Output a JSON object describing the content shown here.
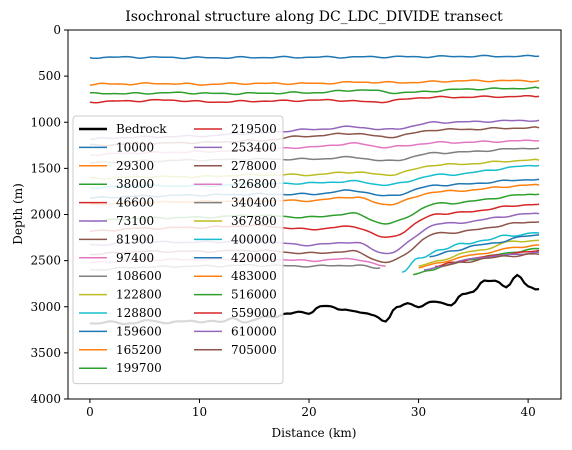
{
  "chart_data": {
    "type": "line",
    "title": "Isochronal structure along DC_LDC_DIVIDE transect",
    "xlabel": "Distance (km)",
    "ylabel": "Depth (m)",
    "xlim": [
      -2,
      43
    ],
    "ylim": [
      4000,
      0
    ],
    "y_inverted": true,
    "xticks": [
      0,
      10,
      20,
      30,
      40
    ],
    "yticks": [
      0,
      500,
      1000,
      1500,
      2000,
      2500,
      3000,
      3500,
      4000
    ],
    "grid": false,
    "legend": {
      "placement": "lower-left",
      "columns": 2
    },
    "bedrock": {
      "name": "Bedrock",
      "color": "#000000",
      "x": [
        0,
        1,
        2,
        3,
        4,
        5,
        6,
        7,
        8,
        9,
        10,
        11,
        12,
        13,
        14,
        15,
        16,
        17,
        18,
        19,
        20,
        21,
        22,
        23,
        24,
        25,
        26,
        27,
        28,
        29,
        30,
        31,
        32,
        33,
        34,
        35,
        36,
        37,
        38,
        39,
        40,
        41
      ],
      "values": [
        3170,
        3180,
        3160,
        3190,
        3170,
        3150,
        3160,
        3180,
        3150,
        3160,
        3170,
        3150,
        3160,
        3130,
        3170,
        3140,
        3100,
        3120,
        3070,
        3050,
        3080,
        3000,
        2990,
        3030,
        3050,
        3070,
        3090,
        3160,
        3010,
        2960,
        3000,
        2950,
        2960,
        2980,
        2860,
        2840,
        2720,
        2710,
        2790,
        2660,
        2780,
        2810
      ]
    },
    "series": [
      {
        "name": "10000",
        "color": "#1f77b4",
        "x": [
          0,
          1.5,
          3,
          10,
          20,
          30,
          35,
          41
        ],
        "values": [
          300,
          295,
          295,
          300,
          295,
          290,
          285,
          285
        ]
      },
      {
        "name": "29300",
        "color": "#ff7f0e",
        "x": [
          0,
          1.5,
          3,
          7,
          10,
          14,
          20,
          25,
          28,
          35,
          41
        ],
        "values": [
          590,
          585,
          585,
          580,
          590,
          580,
          580,
          565,
          570,
          550,
          550
        ]
      },
      {
        "name": "38000",
        "color": "#2ca02c",
        "x": [
          0,
          1.5,
          3,
          8,
          12,
          20,
          25,
          28,
          35,
          41
        ],
        "values": [
          690,
          685,
          690,
          680,
          690,
          680,
          650,
          680,
          640,
          630
        ]
      },
      {
        "name": "46600",
        "color": "#d62728",
        "x": [
          0,
          1.5,
          3,
          7,
          11,
          16,
          22,
          26,
          31,
          41
        ],
        "values": [
          780,
          775,
          770,
          760,
          780,
          770,
          760,
          780,
          730,
          720
        ]
      },
      {
        "name": "73100",
        "color": "#9467bd",
        "x": [
          0,
          5,
          10,
          15,
          20,
          24,
          27,
          32,
          41
        ],
        "values": [
          1180,
          1160,
          1150,
          1120,
          1080,
          1050,
          1080,
          1000,
          980
        ]
      },
      {
        "name": "81900",
        "color": "#8c564b",
        "x": [
          0,
          5,
          10,
          15,
          20,
          24,
          27,
          32,
          41
        ],
        "values": [
          1250,
          1230,
          1220,
          1200,
          1150,
          1120,
          1160,
          1080,
          1060
        ]
      },
      {
        "name": "97400",
        "color": "#e377c2",
        "x": [
          0,
          5,
          10,
          15,
          20,
          24,
          27,
          32,
          41
        ],
        "values": [
          1350,
          1330,
          1320,
          1300,
          1270,
          1230,
          1270,
          1220,
          1200
        ]
      },
      {
        "name": "108600",
        "color": "#7f7f7f",
        "x": [
          0,
          5,
          10,
          15,
          20,
          24,
          27,
          32,
          41
        ],
        "values": [
          1440,
          1420,
          1410,
          1400,
          1400,
          1380,
          1420,
          1330,
          1280
        ]
      },
      {
        "name": "122800",
        "color": "#bcbd22",
        "x": [
          0,
          5,
          10,
          15,
          20,
          24,
          27,
          32,
          41
        ],
        "values": [
          1610,
          1590,
          1590,
          1570,
          1570,
          1540,
          1570,
          1460,
          1410
        ]
      },
      {
        "name": "128800",
        "color": "#17becf",
        "x": [
          0,
          5,
          10,
          15,
          20,
          24,
          27,
          32,
          41
        ],
        "values": [
          1710,
          1690,
          1690,
          1670,
          1660,
          1640,
          1680,
          1570,
          1470
        ]
      },
      {
        "name": "159600",
        "color": "#1f77b4",
        "x": [
          0,
          5,
          10,
          15,
          20,
          24,
          27,
          32,
          41
        ],
        "values": [
          1820,
          1800,
          1790,
          1780,
          1780,
          1740,
          1800,
          1680,
          1620
        ]
      },
      {
        "name": "165200",
        "color": "#ff7f0e",
        "x": [
          0,
          5,
          10,
          15,
          20,
          24,
          27,
          32,
          41
        ],
        "values": [
          1890,
          1870,
          1860,
          1850,
          1850,
          1810,
          1890,
          1750,
          1680
        ]
      },
      {
        "name": "199700",
        "color": "#2ca02c",
        "x": [
          0,
          5,
          10,
          15,
          20,
          24,
          27,
          32,
          41
        ],
        "values": [
          2070,
          2040,
          2030,
          2010,
          2030,
          1990,
          2100,
          1880,
          1780
        ]
      },
      {
        "name": "219500",
        "color": "#d62728",
        "x": [
          0,
          5,
          10,
          15,
          20,
          24,
          27,
          32,
          41
        ],
        "values": [
          2180,
          2150,
          2140,
          2120,
          2160,
          2130,
          2250,
          1990,
          1890
        ]
      },
      {
        "name": "253400",
        "color": "#9467bd",
        "x": [
          0,
          5,
          10,
          15,
          20,
          24,
          27,
          32,
          41
        ],
        "values": [
          2330,
          2300,
          2300,
          2290,
          2330,
          2300,
          2420,
          2100,
          1990
        ]
      },
      {
        "name": "278000",
        "color": "#8c564b",
        "x": [
          0,
          5,
          10,
          15,
          20,
          24,
          27,
          32,
          41
        ],
        "values": [
          2430,
          2400,
          2400,
          2390,
          2420,
          2400,
          2520,
          2200,
          2080
        ]
      },
      {
        "name": "326800",
        "color": "#e377c2",
        "x": [
          0,
          5,
          10,
          15,
          20,
          24,
          27
        ],
        "values": [
          2520,
          2490,
          2490,
          2480,
          2500,
          2480,
          2560
        ]
      },
      {
        "name": "340400",
        "color": "#7f7f7f",
        "x": [
          0,
          5,
          10,
          15,
          20,
          24,
          26.5
        ],
        "values": [
          2600,
          2570,
          2560,
          2550,
          2560,
          2550,
          2580
        ]
      },
      {
        "name": "367800",
        "color": "#bcbd22",
        "x": [
          30,
          32,
          34,
          36,
          38,
          41
        ],
        "values": [
          2560,
          2500,
          2420,
          2380,
          2300,
          2280
        ]
      },
      {
        "name": "400000",
        "color": "#17becf",
        "x": [
          28.5,
          30,
          32,
          34,
          36,
          38,
          41
        ],
        "values": [
          2620,
          2480,
          2380,
          2320,
          2280,
          2230,
          2200
        ]
      },
      {
        "name": "420000",
        "color": "#1f77b4",
        "x": [
          31,
          33,
          35,
          37,
          39,
          41
        ],
        "values": [
          2460,
          2400,
          2340,
          2310,
          2250,
          2220
        ]
      },
      {
        "name": "483000",
        "color": "#ff7f0e",
        "x": [
          30,
          32,
          34,
          36,
          38,
          41
        ],
        "values": [
          2580,
          2520,
          2460,
          2420,
          2370,
          2330
        ]
      },
      {
        "name": "516000",
        "color": "#2ca02c",
        "x": [
          29.5,
          31,
          33,
          35,
          37,
          39,
          41
        ],
        "values": [
          2660,
          2600,
          2540,
          2480,
          2440,
          2400,
          2370
        ]
      },
      {
        "name": "559000",
        "color": "#d62728",
        "x": [
          31.5,
          33,
          35,
          37,
          39,
          41
        ],
        "values": [
          2570,
          2520,
          2480,
          2440,
          2420,
          2390
        ]
      },
      {
        "name": "610000",
        "color": "#9467bd",
        "x": [
          30.5,
          32,
          34,
          36,
          38,
          41
        ],
        "values": [
          2610,
          2560,
          2500,
          2460,
          2440,
          2410
        ]
      },
      {
        "name": "705000",
        "color": "#8c564b",
        "x": [
          32,
          34,
          36,
          38,
          41
        ],
        "values": [
          2560,
          2520,
          2480,
          2450,
          2430
        ]
      }
    ]
  }
}
